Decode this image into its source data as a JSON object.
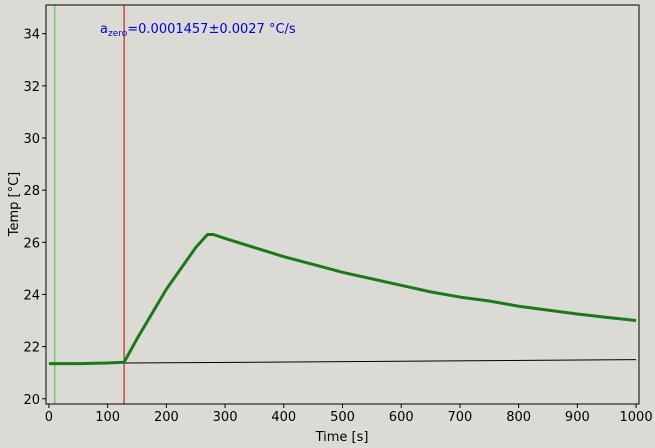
{
  "chart_data": {
    "type": "line",
    "xlabel": "Time [s]",
    "ylabel": "Temp [°C]",
    "annotation": {
      "base": "a",
      "sub": "zero",
      "rest": "=0.0001457±0.0027 °C/s",
      "color": "#0000e0"
    },
    "xlim": [
      -5,
      1005
    ],
    "ylim": [
      19.8,
      35.1
    ],
    "xticks": [
      0,
      100,
      200,
      300,
      400,
      500,
      600,
      700,
      800,
      900,
      1000
    ],
    "yticks": [
      20,
      22,
      24,
      26,
      28,
      30,
      32,
      34
    ],
    "vlines": [
      {
        "x": 10,
        "color": "#33cc33"
      },
      {
        "x": 128,
        "color": "#c00000"
      }
    ],
    "series": [
      {
        "color": "#1a7a1a",
        "width": 3,
        "x": [
          0,
          50,
          100,
          128,
          150,
          200,
          250,
          270,
          280,
          300,
          350,
          400,
          450,
          500,
          550,
          600,
          650,
          700,
          750,
          800,
          850,
          900,
          950,
          1000
        ],
        "values": [
          21.35,
          21.35,
          21.37,
          21.4,
          22.3,
          24.2,
          25.8,
          26.3,
          26.3,
          26.15,
          25.8,
          25.45,
          25.15,
          24.85,
          24.6,
          24.35,
          24.1,
          23.9,
          23.75,
          23.55,
          23.4,
          23.25,
          23.12,
          23.0
        ]
      },
      {
        "color": "#000000",
        "width": 1,
        "x": [
          0,
          1000
        ],
        "values": [
          21.35,
          21.5
        ]
      }
    ]
  }
}
